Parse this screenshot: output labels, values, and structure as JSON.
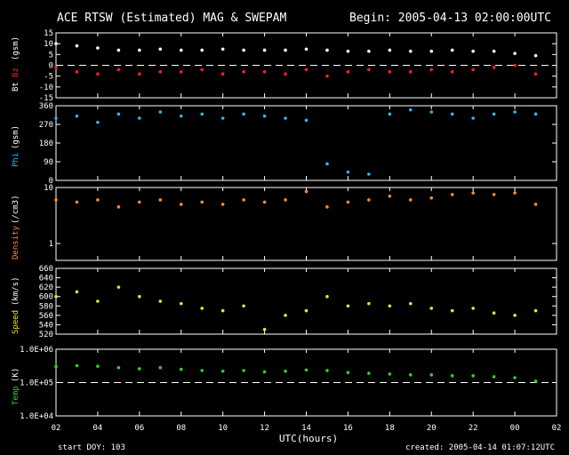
{
  "title": "ACE RTSW (Estimated) MAG & SWEPAM",
  "begin": "Begin: 2005-04-13 02:00:00UTC",
  "footer": {
    "start_doy": "start DOY: 103",
    "created": "created: 2005-04-14 01:07:12UTC"
  },
  "colors": {
    "background": "#000000",
    "frame": "#ffffff",
    "bt": "#ffffff",
    "bz": "#ff2020",
    "phi": "#2ab8e8",
    "density": "#ff8a30",
    "speed": "#f0e030",
    "temp": "#30d030"
  },
  "chart_data": [
    {
      "type": "scatter",
      "panel": "mag",
      "ylabel_parts": [
        "Bt",
        "Bz",
        "(gsm)"
      ],
      "ylim": [
        -15,
        15
      ],
      "yticks": [
        "-15",
        "-10",
        "-5",
        "0",
        "5",
        "10",
        "15"
      ],
      "ytick_values": [
        -15,
        -10,
        -5,
        0,
        5,
        10,
        15
      ],
      "reference_line": 0,
      "x": [
        2,
        3,
        4,
        5,
        6,
        7,
        8,
        9,
        10,
        11,
        12,
        13,
        14,
        15,
        16,
        17,
        18,
        19,
        20,
        21,
        22,
        23,
        24,
        25
      ],
      "series": [
        {
          "name": "Bt",
          "values": [
            10,
            9,
            8,
            7,
            7,
            7.5,
            7,
            7,
            7.5,
            7,
            7,
            7,
            7.5,
            7,
            6.5,
            6.5,
            7,
            6.5,
            6.5,
            7,
            6.5,
            6.5,
            5.5,
            4.5
          ]
        },
        {
          "name": "Bz",
          "values": [
            -1,
            -3,
            -4,
            -2,
            -4,
            -3,
            -3,
            -2,
            -4,
            -3,
            -3,
            -4,
            -2,
            -5,
            -3,
            -2,
            -3,
            -3,
            -2,
            -3,
            -2,
            -1,
            0,
            -4
          ]
        }
      ]
    },
    {
      "type": "scatter",
      "panel": "phi",
      "ylabel_parts": [
        "Phi",
        "(gsm)"
      ],
      "ylim": [
        0,
        360
      ],
      "yticks": [
        "0",
        "90",
        "180",
        "270",
        "360"
      ],
      "ytick_values": [
        0,
        90,
        180,
        270,
        360
      ],
      "x": [
        2,
        3,
        4,
        5,
        6,
        7,
        8,
        9,
        10,
        11,
        12,
        13,
        14,
        15,
        16,
        17,
        18,
        19,
        20,
        21,
        22,
        23,
        24,
        25
      ],
      "series": [
        {
          "name": "Phi",
          "values": [
            300,
            310,
            280,
            320,
            300,
            330,
            310,
            320,
            300,
            320,
            310,
            300,
            290,
            80,
            40,
            30,
            320,
            340,
            330,
            320,
            300,
            320,
            330,
            320
          ]
        }
      ]
    },
    {
      "type": "scatter",
      "panel": "density",
      "ylabel_parts": [
        "Density",
        "(/cm3)"
      ],
      "scale": "log",
      "ylim": [
        0.5,
        10
      ],
      "yticks": [
        "1",
        "10"
      ],
      "ytick_values": [
        1,
        10
      ],
      "x": [
        2,
        3,
        4,
        5,
        6,
        7,
        8,
        9,
        10,
        11,
        12,
        13,
        14,
        15,
        16,
        17,
        18,
        19,
        20,
        21,
        22,
        23,
        24,
        25
      ],
      "series": [
        {
          "name": "Density",
          "values": [
            6,
            5.5,
            6,
            4.5,
            5.5,
            6,
            5,
            5.5,
            5,
            6,
            5.5,
            6,
            8.5,
            4.5,
            5.5,
            6,
            7,
            6,
            6.5,
            7.5,
            8,
            7.5,
            8,
            5
          ]
        }
      ]
    },
    {
      "type": "scatter",
      "panel": "speed",
      "ylabel_parts": [
        "Speed",
        "(km/s)"
      ],
      "ylim": [
        520,
        660
      ],
      "yticks": [
        "520",
        "540",
        "560",
        "580",
        "600",
        "620",
        "640",
        "660"
      ],
      "ytick_values": [
        520,
        540,
        560,
        580,
        600,
        620,
        640,
        660
      ],
      "x": [
        2,
        3,
        4,
        5,
        6,
        7,
        8,
        9,
        10,
        11,
        12,
        13,
        14,
        15,
        16,
        17,
        18,
        19,
        20,
        21,
        22,
        23,
        24,
        25
      ],
      "series": [
        {
          "name": "Speed",
          "values": [
            600,
            610,
            590,
            620,
            600,
            590,
            585,
            575,
            570,
            580,
            530,
            560,
            570,
            600,
            580,
            585,
            580,
            585,
            575,
            570,
            575,
            565,
            560,
            570
          ]
        }
      ]
    },
    {
      "type": "scatter",
      "panel": "temp",
      "ylabel_parts": [
        "Temp",
        "(K)"
      ],
      "scale": "log",
      "ylim": [
        10000,
        1000000
      ],
      "yticks": [
        "1.0E+04",
        "1.0E+05",
        "1.0E+06"
      ],
      "ytick_values": [
        10000,
        100000,
        1000000
      ],
      "reference_line": 100000,
      "x": [
        2,
        3,
        4,
        5,
        6,
        7,
        8,
        9,
        10,
        11,
        12,
        13,
        14,
        15,
        16,
        17,
        18,
        19,
        20,
        21,
        22,
        23,
        24,
        25
      ],
      "series": [
        {
          "name": "Temp",
          "values": [
            300000,
            320000,
            310000,
            280000,
            260000,
            280000,
            250000,
            230000,
            220000,
            230000,
            210000,
            220000,
            240000,
            230000,
            200000,
            190000,
            180000,
            170000,
            170000,
            160000,
            160000,
            150000,
            140000,
            110000
          ]
        }
      ]
    }
  ],
  "xaxis": {
    "label": "UTC(hours)",
    "ticks": [
      "02",
      "04",
      "06",
      "08",
      "10",
      "12",
      "14",
      "16",
      "18",
      "20",
      "22",
      "00",
      "02"
    ],
    "tick_values": [
      2,
      4,
      6,
      8,
      10,
      12,
      14,
      16,
      18,
      20,
      22,
      24,
      26
    ],
    "range": [
      2,
      26
    ]
  }
}
